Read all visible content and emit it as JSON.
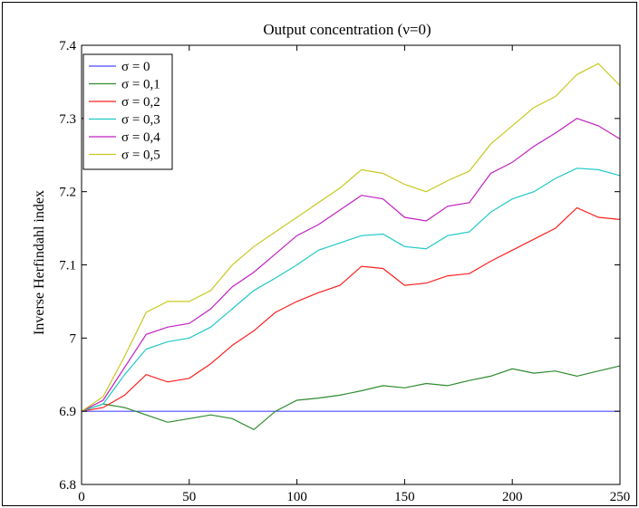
{
  "chart_data": {
    "type": "line",
    "title": "Output concentration (ν=0)",
    "xlabel": "",
    "ylabel": "Inverse Herfindahl index",
    "xlim": [
      0,
      250
    ],
    "ylim": [
      6.8,
      7.4
    ],
    "xticks": [
      "0",
      "50",
      "100",
      "150",
      "200",
      "250"
    ],
    "yticks": [
      "6.8",
      "6.9",
      "7",
      "7.1",
      "7.2",
      "7.3",
      "7.4"
    ],
    "legend_position": "top-left",
    "grid": false,
    "x_step": 10,
    "series": [
      {
        "name": "σ = 0",
        "color": "#4b4bff",
        "values": [
          6.9,
          6.9,
          6.9,
          6.9,
          6.9,
          6.9,
          6.9,
          6.9,
          6.9,
          6.9,
          6.9,
          6.9,
          6.9,
          6.9,
          6.9,
          6.9,
          6.9,
          6.9,
          6.9,
          6.9,
          6.9,
          6.9,
          6.9,
          6.9,
          6.9,
          6.9
        ]
      },
      {
        "name": "σ = 0,1",
        "color": "#2e8b2e",
        "values": [
          6.9,
          6.91,
          6.905,
          6.895,
          6.885,
          6.89,
          6.895,
          6.89,
          6.875,
          6.9,
          6.915,
          6.918,
          6.922,
          6.928,
          6.935,
          6.932,
          6.938,
          6.935,
          6.942,
          6.948,
          6.958,
          6.952,
          6.955,
          6.948,
          6.955,
          6.962
        ]
      },
      {
        "name": "σ = 0,2",
        "color": "#ff2020",
        "values": [
          6.9,
          6.905,
          6.922,
          6.95,
          6.94,
          6.945,
          6.965,
          6.99,
          7.01,
          7.035,
          7.05,
          7.062,
          7.072,
          7.098,
          7.095,
          7.072,
          7.075,
          7.085,
          7.088,
          7.105,
          7.12,
          7.135,
          7.15,
          7.178,
          7.165,
          7.162
        ]
      },
      {
        "name": "σ = 0,3",
        "color": "#20c8c8",
        "values": [
          6.9,
          6.91,
          6.95,
          6.985,
          6.995,
          7.0,
          7.015,
          7.04,
          7.065,
          7.082,
          7.1,
          7.12,
          7.13,
          7.14,
          7.142,
          7.125,
          7.122,
          7.14,
          7.145,
          7.172,
          7.19,
          7.2,
          7.218,
          7.232,
          7.23,
          7.222
        ]
      },
      {
        "name": "σ = 0,4",
        "color": "#c020c0",
        "values": [
          6.9,
          6.915,
          6.96,
          7.005,
          7.015,
          7.02,
          7.04,
          7.07,
          7.09,
          7.115,
          7.14,
          7.155,
          7.175,
          7.195,
          7.19,
          7.165,
          7.16,
          7.18,
          7.185,
          7.225,
          7.24,
          7.262,
          7.28,
          7.3,
          7.29,
          7.272
        ]
      },
      {
        "name": "σ = 0,5",
        "color": "#c8c820",
        "values": [
          6.9,
          6.92,
          6.975,
          7.035,
          7.05,
          7.05,
          7.065,
          7.1,
          7.125,
          7.145,
          7.165,
          7.185,
          7.205,
          7.23,
          7.225,
          7.21,
          7.2,
          7.215,
          7.228,
          7.265,
          7.29,
          7.315,
          7.33,
          7.36,
          7.375,
          7.345
        ]
      }
    ]
  }
}
